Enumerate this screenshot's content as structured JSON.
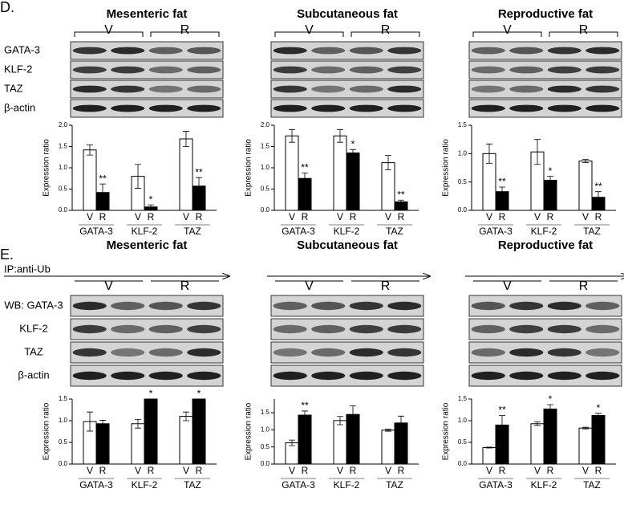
{
  "panels": [
    {
      "label": "D.",
      "blots": [
        {
          "title": "Mesenteric fat",
          "groups": [
            "V",
            "R"
          ],
          "rows": [
            "GATA-3",
            "KLF-2",
            "TAZ",
            "β-actin"
          ]
        },
        {
          "title": "Subcutaneous fat",
          "groups": [
            "V",
            "R"
          ]
        },
        {
          "title": "Reproductive fat",
          "groups": [
            "V",
            "R"
          ]
        }
      ]
    },
    {
      "label": "E.",
      "ip_label": "IP:anti-Ub",
      "blots": [
        {
          "title": "Mesenteric fat",
          "groups": [
            "V",
            "R"
          ],
          "rows": [
            "WB: GATA-3",
            "KLF-2",
            "TAZ",
            "β-actin"
          ]
        },
        {
          "title": "Subcutaneous fat",
          "groups": [
            "V",
            "R"
          ]
        },
        {
          "title": "Reproductive fat",
          "groups": [
            "V",
            "R"
          ]
        }
      ]
    }
  ],
  "chart_data": [
    {
      "type": "bar",
      "ylabel": "Expression ratio",
      "categories": [
        "GATA-3",
        "KLF-2",
        "TAZ"
      ],
      "ylim": [
        0,
        2.0
      ],
      "yticks": [
        {
          "value": 0,
          "label": "0.0"
        },
        0.5,
        {
          "value": 1,
          "label": "1.0"
        },
        1.5,
        {
          "value": 2,
          "label": "2.0"
        }
      ],
      "series": [
        {
          "name": "V",
          "color": "#ffffff",
          "values": [
            1.42,
            0.8,
            1.68
          ],
          "errors": [
            0.12,
            0.28,
            0.18
          ]
        },
        {
          "name": "R",
          "color": "#000000",
          "values": [
            0.42,
            0.08,
            0.57
          ],
          "errors": [
            0.2,
            0.05,
            0.2
          ],
          "significance": [
            "**",
            "*",
            "**"
          ]
        }
      ]
    },
    {
      "type": "bar",
      "ylabel": "Expression ratio",
      "categories": [
        "GATA-3",
        "KLF-2",
        "TAZ"
      ],
      "ylim": [
        0,
        2.0
      ],
      "yticks": [
        {
          "value": 0,
          "label": "0.0"
        },
        0.5,
        {
          "value": 1,
          "label": "1.0"
        },
        1.5,
        {
          "value": 2,
          "label": "2.0"
        }
      ],
      "series": [
        {
          "name": "V",
          "color": "#ffffff",
          "values": [
            1.75,
            1.75,
            1.12
          ],
          "errors": [
            0.15,
            0.15,
            0.17
          ]
        },
        {
          "name": "R",
          "color": "#000000",
          "values": [
            0.75,
            1.35,
            0.2
          ],
          "errors": [
            0.13,
            0.08,
            0.04
          ],
          "significance": [
            "**",
            "*",
            "**"
          ]
        }
      ]
    },
    {
      "type": "bar",
      "ylabel": "Expression ratio",
      "categories": [
        "GATA-3",
        "KLF-2",
        "TAZ"
      ],
      "ylim": [
        0,
        1.5
      ],
      "yticks": [
        {
          "value": 0,
          "label": "0.0"
        },
        0.5,
        {
          "value": 1,
          "label": "1.0"
        },
        1.5
      ],
      "series": [
        {
          "name": "V",
          "color": "#ffffff",
          "values": [
            1.0,
            1.03,
            0.87
          ],
          "errors": [
            0.17,
            0.22,
            0.03
          ]
        },
        {
          "name": "R",
          "color": "#000000",
          "values": [
            0.33,
            0.53,
            0.23
          ],
          "errors": [
            0.08,
            0.07,
            0.1
          ],
          "significance": [
            "**",
            "*",
            "**"
          ]
        }
      ]
    },
    {
      "type": "bar",
      "ylabel": "Expression ratio",
      "categories": [
        "GATA-3",
        "KLF-2",
        "TAZ"
      ],
      "ylim": [
        0,
        1.5
      ],
      "yticks": [
        {
          "value": 0,
          "label": "0.0"
        },
        0.5,
        {
          "value": 1,
          "label": "1.0"
        },
        1.5
      ],
      "series": [
        {
          "name": "V",
          "color": "#ffffff",
          "values": [
            0.98,
            0.93,
            1.1
          ],
          "errors": [
            0.22,
            0.1,
            0.1
          ]
        },
        {
          "name": "R",
          "color": "#000000",
          "values": [
            0.93,
            1.5,
            1.5
          ],
          "errors": [
            0.08,
            0,
            0
          ],
          "significance": [
            null,
            "*",
            "*"
          ]
        }
      ]
    },
    {
      "type": "bar",
      "ylabel": "Expression ratio",
      "categories": [
        "GATA-3",
        "KLF-2",
        "TAZ"
      ],
      "ylim": [
        0,
        1.9
      ],
      "yticks": [
        {
          "value": 0,
          "label": "0.0"
        },
        0.5,
        {
          "value": 1,
          "label": "1.0"
        },
        1.5
      ],
      "series": [
        {
          "name": "V",
          "color": "#ffffff",
          "values": [
            0.62,
            1.27,
            0.99
          ],
          "errors": [
            0.08,
            0.12,
            0.03
          ]
        },
        {
          "name": "R",
          "color": "#000000",
          "values": [
            1.43,
            1.45,
            1.2
          ],
          "errors": [
            0.12,
            0.25,
            0.2
          ],
          "significance": [
            "**",
            null,
            null
          ]
        }
      ]
    },
    {
      "type": "bar",
      "ylabel": "Expression ratio",
      "categories": [
        "GATA-3",
        "KLF-2",
        "TAZ"
      ],
      "ylim": [
        0,
        1.5
      ],
      "yticks": [
        {
          "value": 0,
          "label": "0.0"
        },
        0.5,
        {
          "value": 1,
          "label": "1.0"
        },
        1.5
      ],
      "series": [
        {
          "name": "V",
          "color": "#ffffff",
          "values": [
            0.38,
            0.93,
            0.83
          ],
          "errors": [
            0.01,
            0.04,
            0.02
          ]
        },
        {
          "name": "R",
          "color": "#000000",
          "values": [
            0.9,
            1.27,
            1.12
          ],
          "errors": [
            0.22,
            0.1,
            0.05
          ],
          "significance": [
            "**",
            "*",
            "*"
          ]
        }
      ]
    }
  ]
}
